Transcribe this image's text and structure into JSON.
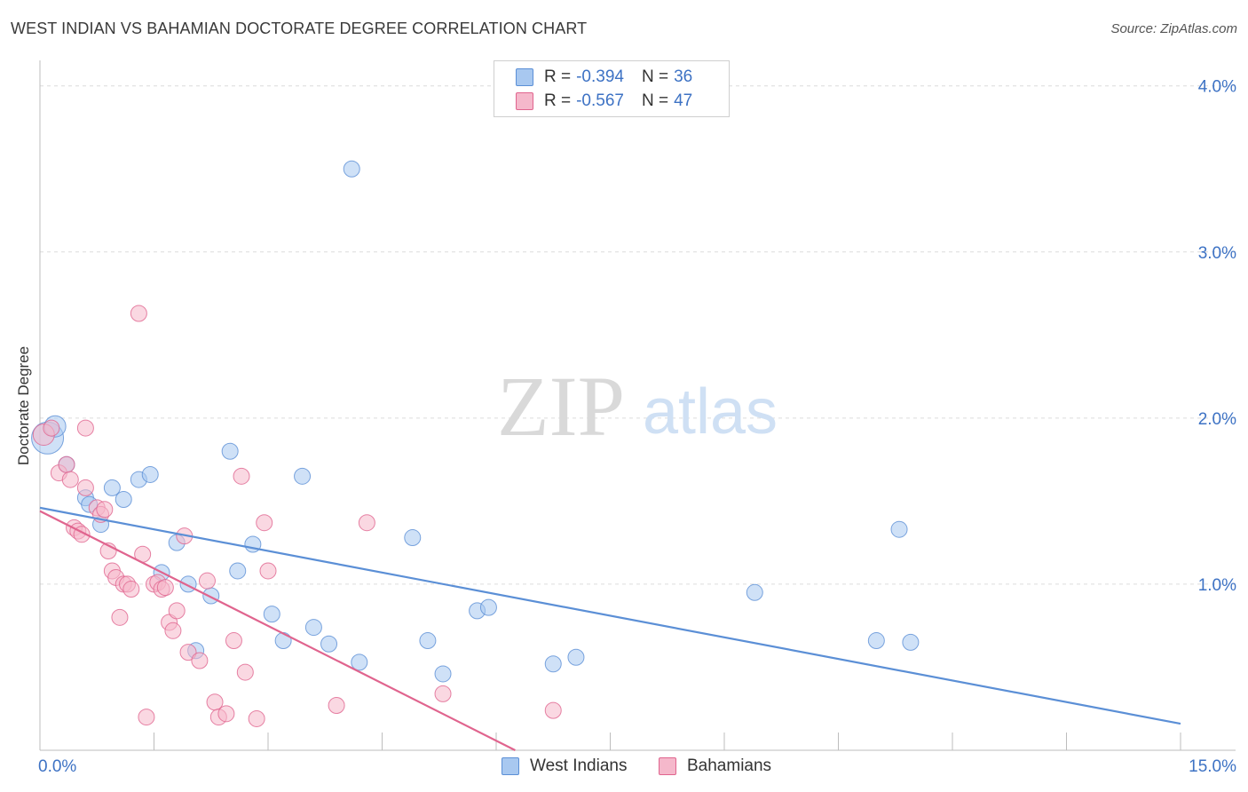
{
  "header": {
    "title": "WEST INDIAN VS BAHAMIAN DOCTORATE DEGREE CORRELATION CHART",
    "source": "Source: ZipAtlas.com"
  },
  "watermark": {
    "zip": "ZIP",
    "atlas": "atlas"
  },
  "legend": {
    "rows": [
      {
        "r_label": "R = ",
        "r_value": "-0.394",
        "n_label": "N = ",
        "n_value": "36",
        "color": "#a8c8f0"
      },
      {
        "r_label": "R = ",
        "r_value": "-0.567",
        "n_label": "N = ",
        "n_value": "47",
        "color": "#f5b8cb"
      }
    ]
  },
  "bottom_legend": {
    "items": [
      {
        "label": "West Indians",
        "color": "#a8c8f0"
      },
      {
        "label": "Bahamians",
        "color": "#f5b8cb"
      }
    ]
  },
  "chart_data": {
    "type": "scatter",
    "title": "WEST INDIAN VS BAHAMIAN DOCTORATE DEGREE CORRELATION CHART",
    "xlabel": "",
    "ylabel": "Doctorate Degree",
    "xlim": [
      0,
      15
    ],
    "ylim": [
      0,
      4.1
    ],
    "x_tick_labels": [
      "0.0%",
      "15.0%"
    ],
    "y_tick_labels": [
      "1.0%",
      "2.0%",
      "3.0%",
      "4.0%"
    ],
    "y_ticks": [
      1.0,
      2.0,
      3.0,
      4.0
    ],
    "grid": true,
    "legend_position": "top-center",
    "series": [
      {
        "name": "West Indians",
        "color": "#5b8fd6",
        "fill": "#a8c8f0",
        "trend": {
          "x": [
            0,
            15
          ],
          "y": [
            1.46,
            0.16
          ]
        },
        "points": [
          [
            0.1,
            1.88,
            18
          ],
          [
            0.2,
            1.95,
            12
          ],
          [
            0.35,
            1.72,
            9
          ],
          [
            0.6,
            1.52,
            9
          ],
          [
            0.65,
            1.48,
            9
          ],
          [
            0.8,
            1.36,
            9
          ],
          [
            0.95,
            1.58,
            9
          ],
          [
            1.1,
            1.51,
            9
          ],
          [
            1.3,
            1.63,
            9
          ],
          [
            1.45,
            1.66,
            9
          ],
          [
            1.6,
            1.07,
            9
          ],
          [
            1.8,
            1.25,
            9
          ],
          [
            1.95,
            1.0,
            9
          ],
          [
            2.05,
            0.6,
            9
          ],
          [
            2.25,
            0.93,
            9
          ],
          [
            2.5,
            1.8,
            9
          ],
          [
            2.6,
            1.08,
            9
          ],
          [
            2.8,
            1.24,
            9
          ],
          [
            3.05,
            0.82,
            9
          ],
          [
            3.2,
            0.66,
            9
          ],
          [
            3.45,
            1.65,
            9
          ],
          [
            3.6,
            0.74,
            9
          ],
          [
            3.8,
            0.64,
            9
          ],
          [
            4.1,
            3.5,
            9
          ],
          [
            4.2,
            0.53,
            9
          ],
          [
            4.9,
            1.28,
            9
          ],
          [
            5.1,
            0.66,
            9
          ],
          [
            5.3,
            0.46,
            9
          ],
          [
            5.75,
            0.84,
            9
          ],
          [
            5.9,
            0.86,
            9
          ],
          [
            6.75,
            0.52,
            9
          ],
          [
            7.05,
            0.56,
            9
          ],
          [
            9.4,
            0.95,
            9
          ],
          [
            11.3,
            1.33,
            9
          ],
          [
            11.0,
            0.66,
            9
          ],
          [
            11.45,
            0.65,
            9
          ]
        ]
      },
      {
        "name": "Bahamians",
        "color": "#e0648e",
        "fill": "#f5b8cb",
        "trend": {
          "x": [
            0,
            6.25
          ],
          "y": [
            1.44,
            0.0
          ]
        },
        "points": [
          [
            0.05,
            1.9,
            12
          ],
          [
            0.15,
            1.94,
            9
          ],
          [
            0.25,
            1.67,
            9
          ],
          [
            0.35,
            1.72,
            9
          ],
          [
            0.4,
            1.63,
            9
          ],
          [
            0.45,
            1.34,
            9
          ],
          [
            0.5,
            1.32,
            9
          ],
          [
            0.55,
            1.3,
            9
          ],
          [
            0.6,
            1.58,
            9
          ],
          [
            0.75,
            1.46,
            9
          ],
          [
            0.8,
            1.42,
            9
          ],
          [
            0.85,
            1.45,
            9
          ],
          [
            0.9,
            1.2,
            9
          ],
          [
            0.95,
            1.08,
            9
          ],
          [
            1.0,
            1.04,
            9
          ],
          [
            1.05,
            0.8,
            9
          ],
          [
            1.1,
            1.0,
            9
          ],
          [
            1.15,
            1.0,
            9
          ],
          [
            1.2,
            0.97,
            9
          ],
          [
            1.3,
            2.63,
            9
          ],
          [
            1.35,
            1.18,
            9
          ],
          [
            1.4,
            0.2,
            9
          ],
          [
            1.5,
            1.0,
            9
          ],
          [
            1.55,
            1.01,
            9
          ],
          [
            1.6,
            0.97,
            9
          ],
          [
            1.65,
            0.98,
            9
          ],
          [
            1.7,
            0.77,
            9
          ],
          [
            1.75,
            0.72,
            9
          ],
          [
            1.8,
            0.84,
            9
          ],
          [
            1.9,
            1.29,
            9
          ],
          [
            1.95,
            0.59,
            9
          ],
          [
            2.1,
            0.54,
            9
          ],
          [
            2.2,
            1.02,
            9
          ],
          [
            2.3,
            0.29,
            9
          ],
          [
            2.35,
            0.2,
            9
          ],
          [
            2.45,
            0.22,
            9
          ],
          [
            2.55,
            0.66,
            9
          ],
          [
            2.65,
            1.65,
            9
          ],
          [
            2.7,
            0.47,
            9
          ],
          [
            2.85,
            0.19,
            9
          ],
          [
            2.95,
            1.37,
            9
          ],
          [
            3.0,
            1.08,
            9
          ],
          [
            3.9,
            0.27,
            9
          ],
          [
            4.3,
            1.37,
            9
          ],
          [
            5.3,
            0.34,
            9
          ],
          [
            6.75,
            0.24,
            9
          ],
          [
            0.6,
            1.94,
            9
          ]
        ]
      }
    ]
  }
}
